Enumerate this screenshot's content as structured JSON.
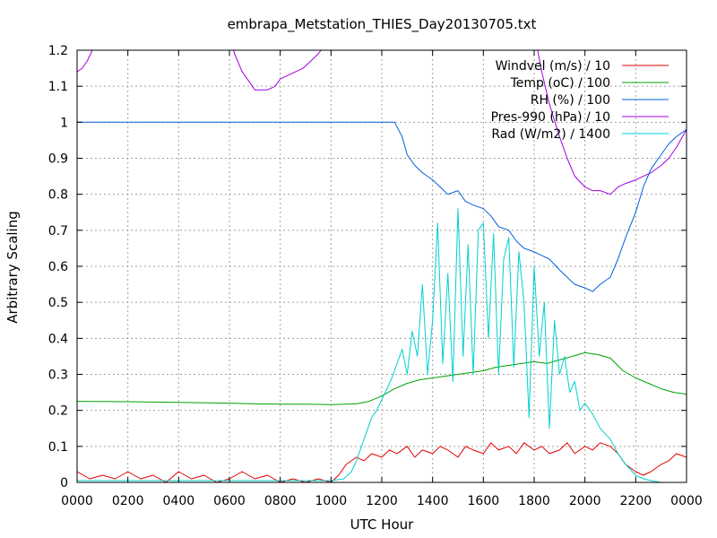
{
  "chart_data": {
    "type": "line",
    "title": "embrapa_Metstation_THIES_Day20130705.txt",
    "xlabel": "UTC Hour",
    "ylabel": "Arbitrary Scaling",
    "xlim": [
      0,
      24
    ],
    "ylim": [
      0,
      1.2
    ],
    "grid": true,
    "legend_position": "top-right",
    "x_ticks": [
      {
        "value": 0,
        "label": "0000"
      },
      {
        "value": 2,
        "label": "0200"
      },
      {
        "value": 4,
        "label": "0400"
      },
      {
        "value": 6,
        "label": "0600"
      },
      {
        "value": 8,
        "label": "0800"
      },
      {
        "value": 10,
        "label": "1000"
      },
      {
        "value": 12,
        "label": "1200"
      },
      {
        "value": 14,
        "label": "1400"
      },
      {
        "value": 16,
        "label": "1600"
      },
      {
        "value": 18,
        "label": "1800"
      },
      {
        "value": 20,
        "label": "2000"
      },
      {
        "value": 22,
        "label": "2200"
      },
      {
        "value": 24,
        "label": "0000"
      }
    ],
    "y_ticks": [
      {
        "value": 0,
        "label": "0"
      },
      {
        "value": 0.1,
        "label": "0.1"
      },
      {
        "value": 0.2,
        "label": "0.2"
      },
      {
        "value": 0.3,
        "label": "0.3"
      },
      {
        "value": 0.4,
        "label": "0.4"
      },
      {
        "value": 0.5,
        "label": "0.5"
      },
      {
        "value": 0.6,
        "label": "0.6"
      },
      {
        "value": 0.7,
        "label": "0.7"
      },
      {
        "value": 0.8,
        "label": "0.8"
      },
      {
        "value": 0.9,
        "label": "0.9"
      },
      {
        "value": 1,
        "label": "1"
      },
      {
        "value": 1.1,
        "label": "1.1"
      },
      {
        "value": 1.2,
        "label": "1.2"
      }
    ],
    "series": [
      {
        "name": "Windvel (m/s) / 10",
        "color": "#e00000",
        "x": [
          0,
          0.5,
          1,
          1.5,
          2,
          2.5,
          3,
          3.5,
          4,
          4.5,
          5,
          5.5,
          6,
          6.5,
          7,
          7.5,
          8,
          8.5,
          9,
          9.5,
          10,
          10.3,
          10.6,
          11,
          11.3,
          11.6,
          12,
          12.3,
          12.6,
          13,
          13.3,
          13.6,
          14,
          14.3,
          14.6,
          15,
          15.3,
          15.6,
          16,
          16.3,
          16.6,
          17,
          17.3,
          17.6,
          18,
          18.3,
          18.6,
          19,
          19.3,
          19.6,
          20,
          20.3,
          20.6,
          21,
          21.3,
          21.6,
          22,
          22.3,
          22.6,
          23,
          23.3,
          23.6,
          24
        ],
        "values": [
          0.03,
          0.01,
          0.02,
          0.01,
          0.03,
          0.01,
          0.02,
          0.0,
          0.03,
          0.01,
          0.02,
          0.0,
          0.01,
          0.03,
          0.01,
          0.02,
          0.0,
          0.01,
          0.0,
          0.01,
          0.0,
          0.02,
          0.05,
          0.07,
          0.06,
          0.08,
          0.07,
          0.09,
          0.08,
          0.1,
          0.07,
          0.09,
          0.08,
          0.1,
          0.09,
          0.07,
          0.1,
          0.09,
          0.08,
          0.11,
          0.09,
          0.1,
          0.08,
          0.11,
          0.09,
          0.1,
          0.08,
          0.09,
          0.11,
          0.08,
          0.1,
          0.09,
          0.11,
          0.1,
          0.08,
          0.05,
          0.03,
          0.02,
          0.03,
          0.05,
          0.06,
          0.08,
          0.07
        ]
      },
      {
        "name": "Temp (oC) / 100",
        "color": "#00a000",
        "x": [
          0,
          2,
          4,
          6,
          7,
          8,
          9,
          10,
          11,
          11.5,
          12,
          12.5,
          13,
          13.5,
          14,
          14.5,
          15,
          15.5,
          16,
          16.5,
          17,
          17.5,
          18,
          18.5,
          19,
          19.5,
          20,
          20.5,
          21,
          21.5,
          22,
          22.5,
          23,
          23.5,
          24
        ],
        "values": [
          0.225,
          0.224,
          0.222,
          0.22,
          0.218,
          0.217,
          0.217,
          0.216,
          0.218,
          0.225,
          0.24,
          0.26,
          0.275,
          0.285,
          0.29,
          0.295,
          0.3,
          0.305,
          0.31,
          0.32,
          0.325,
          0.33,
          0.335,
          0.33,
          0.34,
          0.35,
          0.36,
          0.355,
          0.345,
          0.31,
          0.29,
          0.275,
          0.26,
          0.25,
          0.245
        ]
      },
      {
        "name": "RH (%) / 100",
        "color": "#0060e0",
        "x": [
          0,
          2,
          4,
          6,
          8,
          10,
          11,
          12,
          12.5,
          12.8,
          13,
          13.3,
          13.6,
          14,
          14.3,
          14.6,
          15,
          15.3,
          15.6,
          16,
          16.3,
          16.6,
          17,
          17.3,
          17.6,
          18,
          18.3,
          18.6,
          19,
          19.3,
          19.6,
          20,
          20.3,
          20.6,
          21,
          21.3,
          21.6,
          22,
          22.3,
          22.6,
          23,
          23.3,
          23.6,
          24
        ],
        "values": [
          1.0,
          1.0,
          1.0,
          1.0,
          1.0,
          1.0,
          1.0,
          1.0,
          1.0,
          0.96,
          0.91,
          0.88,
          0.86,
          0.84,
          0.82,
          0.8,
          0.81,
          0.78,
          0.77,
          0.76,
          0.74,
          0.71,
          0.7,
          0.67,
          0.65,
          0.64,
          0.63,
          0.62,
          0.59,
          0.57,
          0.55,
          0.54,
          0.53,
          0.55,
          0.57,
          0.62,
          0.68,
          0.75,
          0.82,
          0.87,
          0.91,
          0.94,
          0.96,
          0.98
        ]
      },
      {
        "name": "Pres-990 (hPa) / 10",
        "color": "#a000e0",
        "x": [
          0,
          0.2,
          0.4,
          0.6,
          0.8,
          1,
          6,
          6.2,
          6.5,
          6.8,
          7,
          7.2,
          7.5,
          7.8,
          8,
          8.3,
          8.6,
          8.9,
          9.2,
          9.5,
          9.8,
          10,
          18,
          18.3,
          18.6,
          19,
          19.3,
          19.6,
          20,
          20.3,
          20.6,
          21,
          21.3,
          21.6,
          22,
          22.3,
          22.6,
          23,
          23.3,
          23.6,
          24
        ],
        "values": [
          1.14,
          1.15,
          1.17,
          1.2,
          1.22,
          1.25,
          1.25,
          1.19,
          1.14,
          1.11,
          1.09,
          1.09,
          1.09,
          1.1,
          1.12,
          1.13,
          1.14,
          1.15,
          1.17,
          1.19,
          1.22,
          1.25,
          1.25,
          1.14,
          1.05,
          0.96,
          0.9,
          0.85,
          0.82,
          0.81,
          0.81,
          0.8,
          0.82,
          0.83,
          0.84,
          0.85,
          0.86,
          0.88,
          0.9,
          0.93,
          0.98
        ]
      },
      {
        "name": "Rad (W/m2) / 1400",
        "color": "#00d0d0",
        "x": [
          0,
          2,
          4,
          6,
          8,
          10,
          10.5,
          10.8,
          11,
          11.2,
          11.4,
          11.6,
          11.8,
          12,
          12.2,
          12.4,
          12.6,
          12.8,
          13,
          13.2,
          13.4,
          13.6,
          13.8,
          14,
          14.2,
          14.4,
          14.6,
          14.8,
          15,
          15.2,
          15.4,
          15.6,
          15.8,
          16,
          16.2,
          16.4,
          16.6,
          16.8,
          17,
          17.2,
          17.4,
          17.6,
          17.8,
          18,
          18.2,
          18.4,
          18.6,
          18.8,
          19,
          19.2,
          19.4,
          19.6,
          19.8,
          20,
          20.3,
          20.6,
          21,
          21.3,
          21.6,
          22,
          22.3,
          22.6,
          23,
          23.5,
          24
        ],
        "values": [
          0.005,
          0.005,
          0.005,
          0.005,
          0.005,
          0.005,
          0.01,
          0.03,
          0.06,
          0.1,
          0.14,
          0.18,
          0.2,
          0.23,
          0.26,
          0.29,
          0.33,
          0.37,
          0.3,
          0.42,
          0.35,
          0.55,
          0.3,
          0.45,
          0.72,
          0.33,
          0.58,
          0.28,
          0.76,
          0.35,
          0.66,
          0.3,
          0.7,
          0.72,
          0.4,
          0.69,
          0.3,
          0.62,
          0.68,
          0.32,
          0.64,
          0.5,
          0.18,
          0.6,
          0.35,
          0.5,
          0.15,
          0.45,
          0.3,
          0.35,
          0.25,
          0.28,
          0.2,
          0.22,
          0.19,
          0.15,
          0.12,
          0.08,
          0.05,
          0.02,
          0.01,
          0.005,
          0.0,
          0.0,
          0.0
        ]
      }
    ]
  }
}
